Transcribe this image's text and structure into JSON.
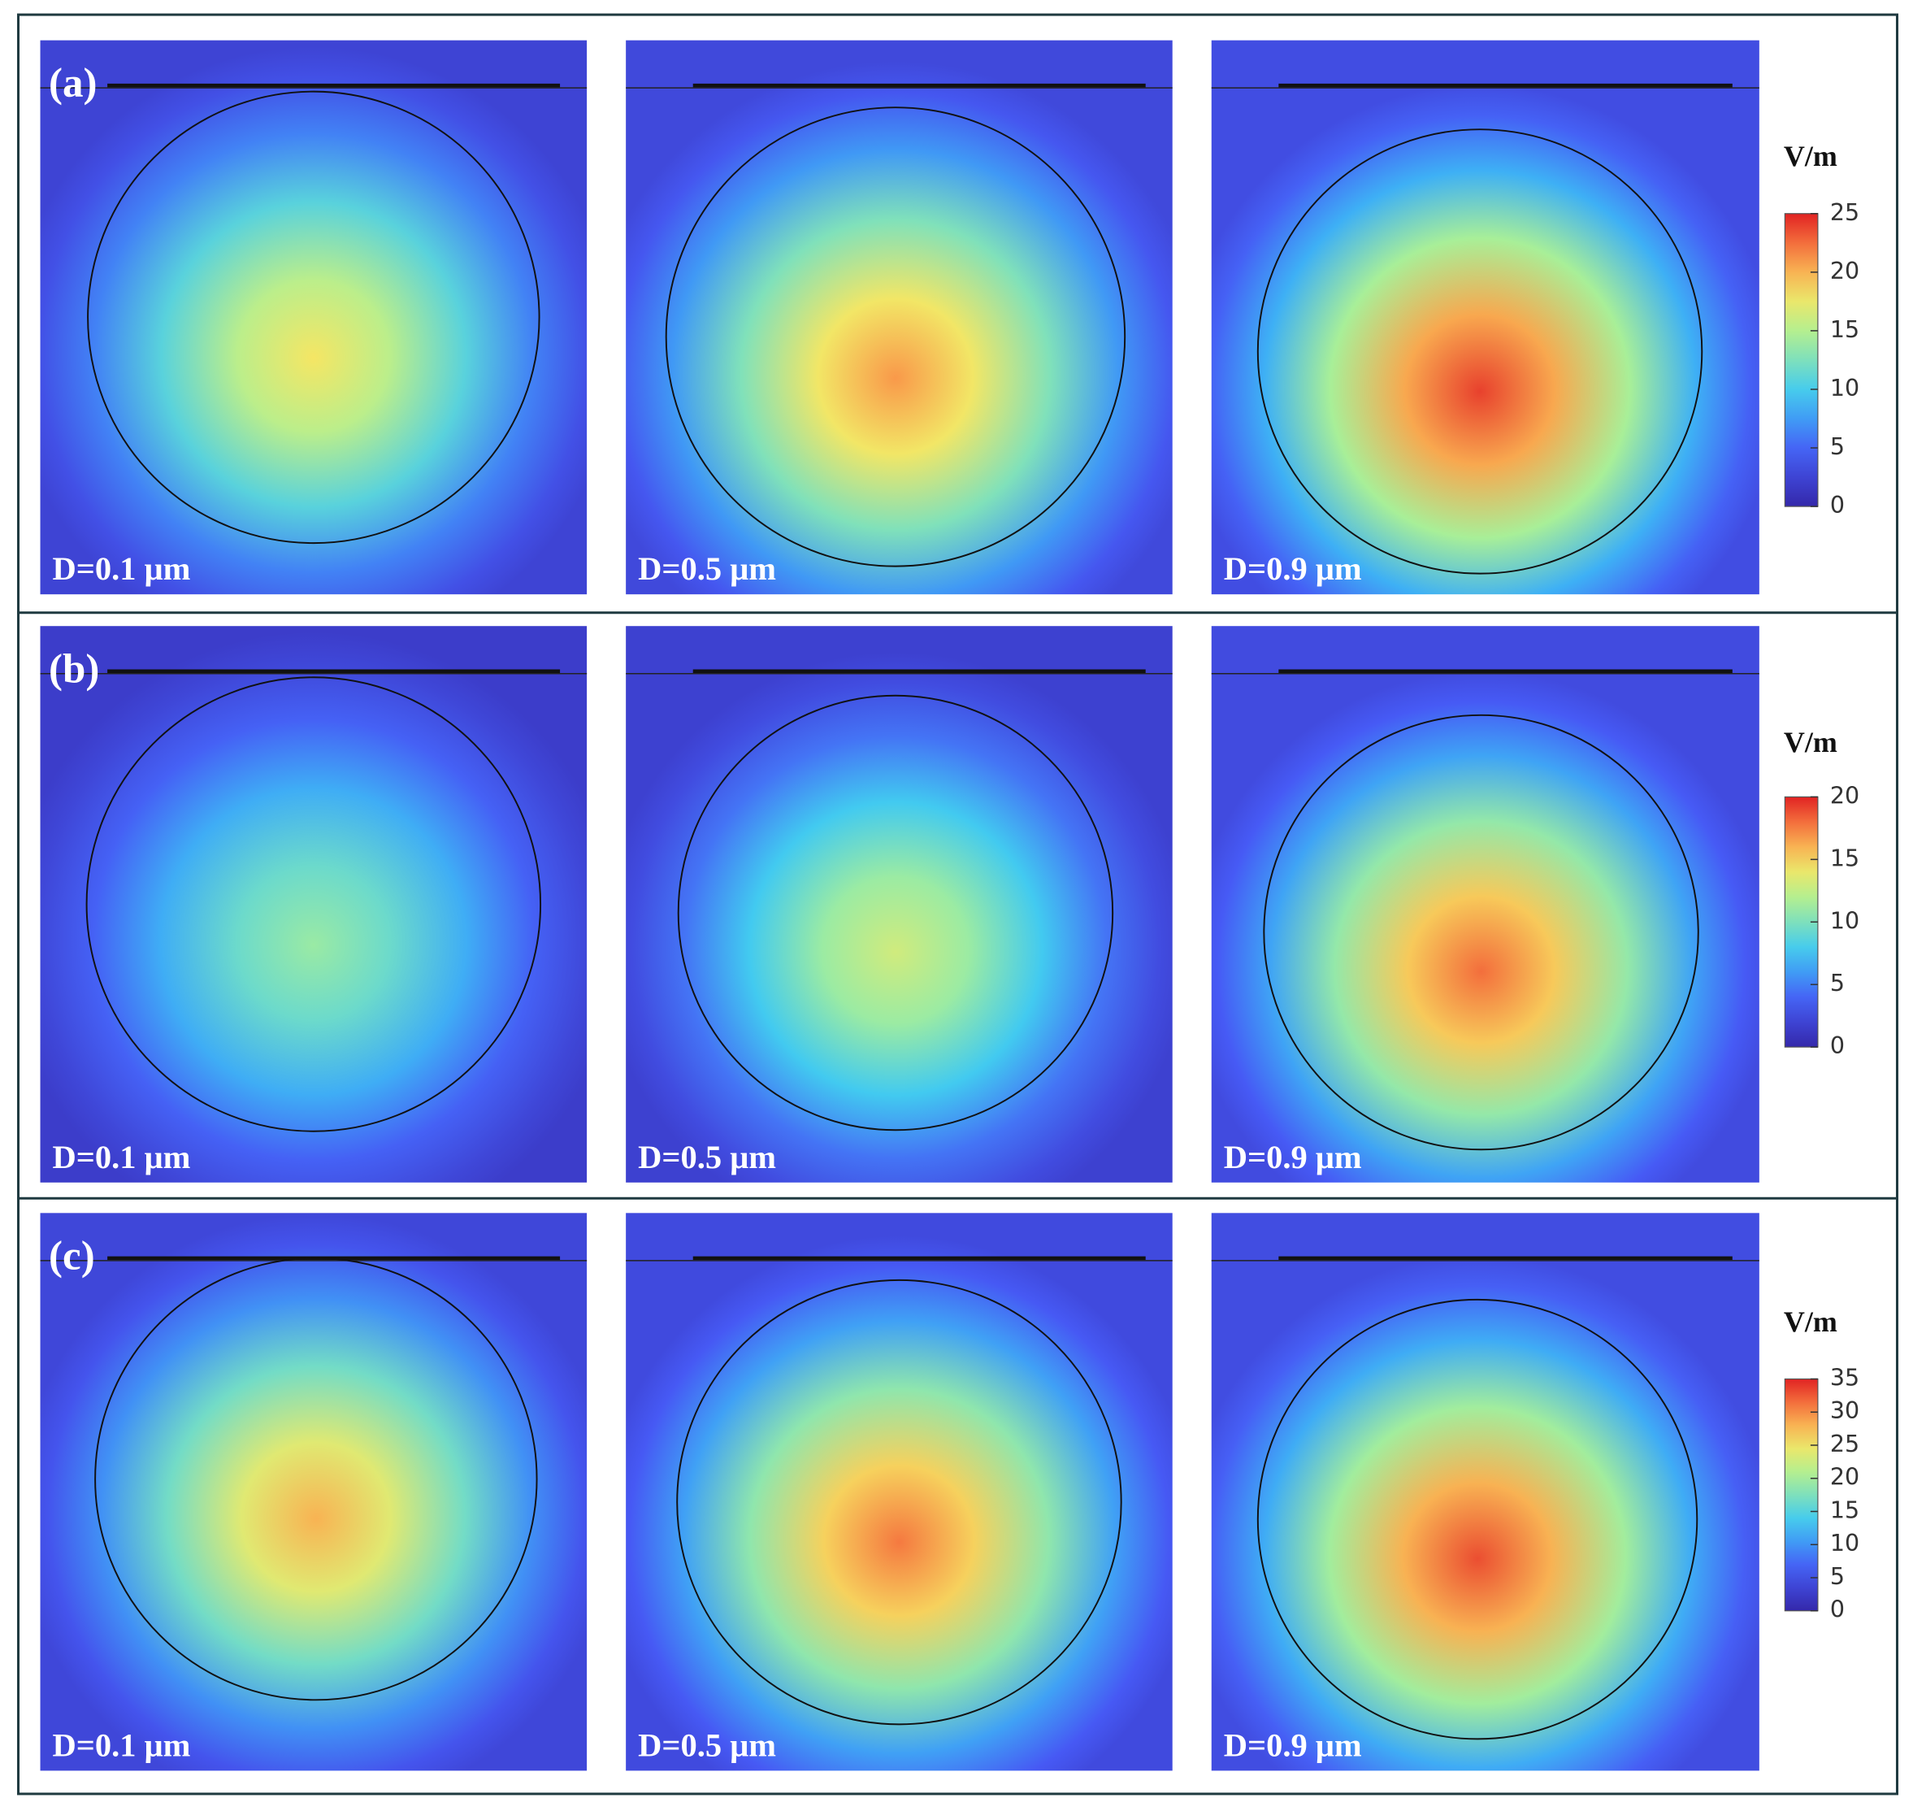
{
  "rows": [
    {
      "label": "(a)",
      "colorbar": {
        "unit": "V/m",
        "lim": [
          0,
          25
        ],
        "ticks": [
          0,
          5,
          10,
          15,
          20,
          25
        ]
      },
      "panels": [
        {
          "label": "D=0.1 μm",
          "peak": 18
        },
        {
          "label": "D=0.5 μm",
          "peak": 21
        },
        {
          "label": "D=0.9 μm",
          "peak": 24
        }
      ]
    },
    {
      "label": "(b)",
      "colorbar": {
        "unit": "V/m",
        "lim": [
          0,
          20
        ],
        "ticks": [
          0,
          5,
          10,
          15,
          20
        ]
      },
      "panels": [
        {
          "label": "D=0.1 μm",
          "peak": 11
        },
        {
          "label": "D=0.5 μm",
          "peak": 13
        },
        {
          "label": "D=0.9 μm",
          "peak": 18
        }
      ]
    },
    {
      "label": "(c)",
      "colorbar": {
        "unit": "V/m",
        "lim": [
          0,
          35
        ],
        "ticks": [
          0,
          5,
          10,
          15,
          20,
          25,
          30,
          35
        ]
      },
      "panels": [
        {
          "label": "D=0.1 μm",
          "peak": 28
        },
        {
          "label": "D=0.5 μm",
          "peak": 31
        },
        {
          "label": "D=0.9 μm",
          "peak": 33
        }
      ]
    }
  ]
}
